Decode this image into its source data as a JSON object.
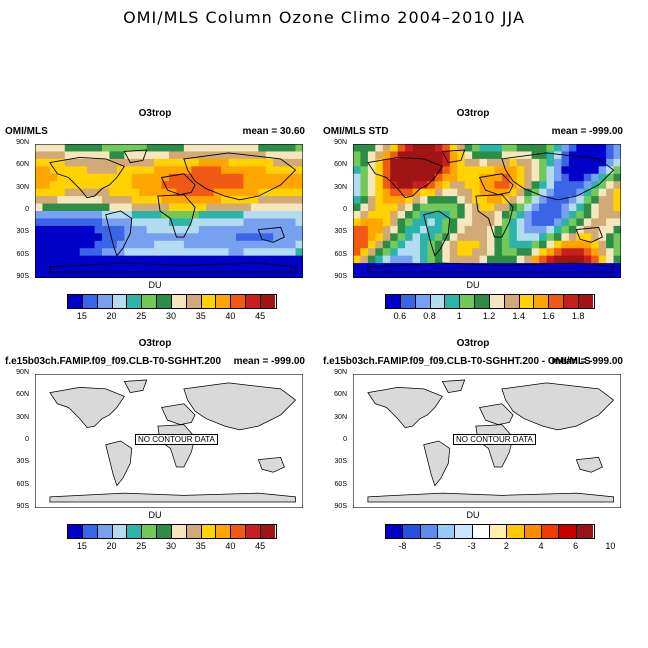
{
  "title": "OMI/MLS Column Ozone Climo 2004–2010 JJA",
  "lat_labels": [
    "90N",
    "60N",
    "30N",
    "0",
    "30S",
    "60S",
    "90S"
  ],
  "panels": [
    {
      "title": "O3trop",
      "left": "OMI/MLS",
      "right": "mean =  30.60",
      "unit": "DU",
      "ticks": [
        "15",
        "20",
        "25",
        "30",
        "35",
        "40",
        "45"
      ],
      "colors": [
        "#0000c8",
        "#3c64e6",
        "#78a0f0",
        "#b4dcf0",
        "#2db4aa",
        "#73c85a",
        "#2d8c46",
        "#f5e6be",
        "#d2aa78",
        "#ffd200",
        "#ffa500",
        "#f05a14",
        "#c81e1e",
        "#a01414"
      ],
      "no_data": ""
    },
    {
      "title": "O3trop",
      "left": "OMI/MLS STD",
      "right": "mean = -999.00",
      "unit": "DU",
      "ticks": [
        "0.6",
        "0.8",
        "1",
        "1.2",
        "1.4",
        "1.6",
        "1.8"
      ],
      "colors": [
        "#0000c8",
        "#3c64e6",
        "#78a0f0",
        "#b4dcf0",
        "#2db4aa",
        "#73c85a",
        "#2d8c46",
        "#f5e6be",
        "#d2aa78",
        "#ffd200",
        "#ffa500",
        "#f05a14",
        "#c81e1e",
        "#a01414"
      ],
      "no_data": ""
    },
    {
      "title": "O3trop",
      "left": "f.e15b03ch.FAMIP.f09_f09.CLB-T0-SGHHT.200",
      "right": "mean = -999.00",
      "unit": "DU",
      "ticks": [
        "15",
        "20",
        "25",
        "30",
        "35",
        "40",
        "45"
      ],
      "colors": [
        "#0000c8",
        "#3c64e6",
        "#78a0f0",
        "#b4dcf0",
        "#2db4aa",
        "#73c85a",
        "#2d8c46",
        "#f5e6be",
        "#d2aa78",
        "#ffd200",
        "#ffa500",
        "#f05a14",
        "#c81e1e",
        "#a01414"
      ],
      "no_data": "NO CONTOUR DATA"
    },
    {
      "title": "O3trop",
      "left": "f.e15b03ch.FAMIP.f09_f09.CLB-T0-SGHHT.200 - OMI/MLS",
      "right": "mean = -999.00",
      "unit": "DU",
      "ticks": [
        "-8",
        "-5",
        "-3",
        "2",
        "4",
        "6",
        "10"
      ],
      "colors": [
        "#0000c8",
        "#2850dc",
        "#5a8cf0",
        "#96c8fa",
        "#c8e6ff",
        "#ffffff",
        "#fff0aa",
        "#ffc800",
        "#ff8c00",
        "#f03c00",
        "#c80000",
        "#961414"
      ],
      "no_data": "NO CONTOUR DATA"
    }
  ]
}
